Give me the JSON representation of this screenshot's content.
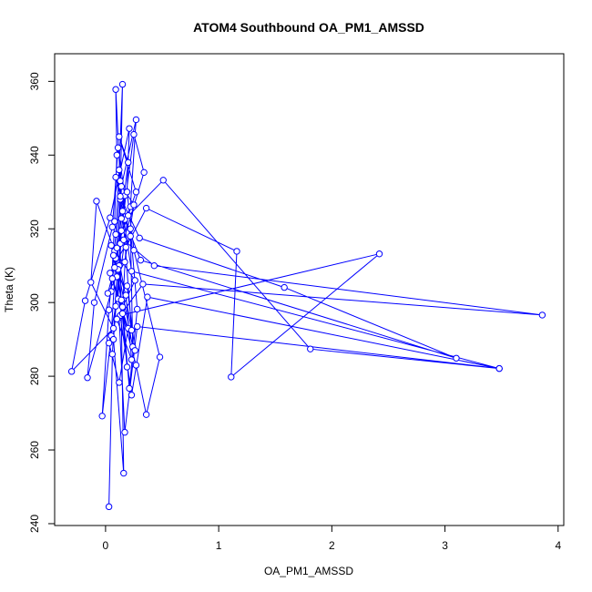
{
  "chart_data": {
    "type": "line",
    "title": "ATOM4 Southbound OA_PM1_AMSSD",
    "xlabel": "OA_PM1_AMSSD",
    "ylabel": "Theta (K)",
    "xlim": [
      -0.45,
      4.05
    ],
    "ylim": [
      239.5,
      367.5
    ],
    "xticks": [
      0,
      1,
      2,
      3,
      4
    ],
    "yticks": [
      240,
      260,
      280,
      300,
      320,
      340,
      360
    ],
    "grid": false,
    "marker": "open-circle",
    "color": "#0000ff",
    "series": [
      {
        "points": [
          [
            0.03,
            244.6
          ],
          [
            0.06,
            286.0
          ],
          [
            0.1,
            307.0
          ],
          [
            0.13,
            328.0
          ],
          [
            0.15,
            359.2
          ],
          [
            0.12,
            336.0
          ],
          [
            0.09,
            318.5
          ],
          [
            0.03,
            298.0
          ],
          [
            -0.03,
            269.2
          ],
          [
            0.05,
            291.0
          ],
          [
            0.09,
            312.0
          ],
          [
            0.13,
            333.0
          ],
          [
            0.09,
            357.8
          ],
          [
            0.1,
            340.0
          ],
          [
            0.08,
            322.0
          ],
          [
            0.05,
            303.0
          ],
          [
            -0.16,
            279.6
          ],
          [
            -0.1,
            300.0
          ],
          [
            0.06,
            320.5
          ],
          [
            0.11,
            342.0
          ],
          [
            0.17,
            329.0
          ],
          [
            0.13,
            316.0
          ],
          [
            0.16,
            253.7
          ],
          [
            0.07,
            290.0
          ],
          [
            0.12,
            310.0
          ],
          [
            0.14,
            331.5
          ],
          [
            0.27,
            349.6
          ],
          [
            0.22,
            326.0
          ],
          [
            0.08,
            314.0
          ],
          [
            -0.08,
            327.5
          ],
          [
            -0.13,
            305.5
          ],
          [
            0.07,
            293.0
          ],
          [
            -0.3,
            281.3
          ],
          [
            -0.18,
            300.5
          ],
          [
            0.04,
            323.0
          ],
          [
            0.21,
            347.2
          ],
          [
            0.19,
            330.0
          ],
          [
            0.25,
            314.2
          ],
          [
            0.48,
            285.2
          ],
          [
            0.36,
            269.6
          ],
          [
            0.27,
            283.0
          ],
          [
            0.11,
            301.0
          ],
          [
            0.14,
            319.5
          ],
          [
            0.25,
            345.6
          ],
          [
            0.34,
            335.3
          ],
          [
            0.16,
            317.0
          ],
          [
            0.43,
            310.0
          ],
          [
            3.86,
            296.6
          ],
          [
            0.33,
            305.0
          ],
          [
            0.12,
            296.0
          ],
          [
            0.17,
            264.8
          ],
          [
            0.28,
            293.5
          ],
          [
            3.48,
            282.1
          ],
          [
            0.23,
            308.5
          ],
          [
            0.13,
            328.8
          ],
          [
            0.3,
            317.5
          ],
          [
            1.58,
            304.1
          ],
          [
            3.1,
            284.9
          ],
          [
            0.31,
            311.5
          ],
          [
            0.17,
            322.5
          ],
          [
            0.51,
            333.2
          ],
          [
            1.81,
            287.4
          ],
          [
            3.48,
            282.1
          ],
          [
            0.37,
            301.5
          ],
          [
            0.23,
            274.9
          ],
          [
            0.13,
            296.5
          ],
          [
            2.42,
            313.2
          ],
          [
            1.11,
            279.8
          ],
          [
            1.16,
            313.9
          ],
          [
            0.36,
            325.6
          ],
          [
            0.18,
            315.0
          ],
          [
            0.15,
            298.8
          ],
          [
            0.21,
            276.7
          ],
          [
            0.28,
            298.2
          ],
          [
            0.22,
            320.0
          ],
          [
            0.24,
            288.0
          ],
          [
            0.11,
            309.0
          ],
          [
            0.19,
            282.5
          ],
          [
            0.14,
            300.7
          ],
          [
            0.05,
            315.5
          ],
          [
            0.26,
            306.0
          ],
          [
            0.1,
            295.5
          ],
          [
            0.23,
            284.5
          ],
          [
            0.18,
            302.0
          ],
          [
            0.07,
            312.8
          ],
          [
            0.2,
            323.6
          ],
          [
            0.09,
            299.0
          ],
          [
            0.03,
            289.0
          ],
          [
            0.12,
            278.3
          ],
          [
            0.2,
            293.0
          ],
          [
            0.06,
            306.5
          ],
          [
            0.15,
            324.8
          ],
          [
            0.23,
            292.5
          ],
          [
            0.1,
            314.8
          ],
          [
            0.27,
            330.0
          ],
          [
            0.12,
            345.0
          ],
          [
            0.2,
            338.0
          ],
          [
            0.14,
            322.8
          ],
          [
            0.08,
            309.5
          ],
          [
            0.02,
            302.5
          ],
          [
            0.17,
            311.0
          ],
          [
            0.25,
            326.5
          ],
          [
            0.09,
            334.0
          ],
          [
            0.22,
            318.0
          ],
          [
            0.04,
            308.0
          ],
          [
            0.15,
            297.0
          ],
          [
            0.26,
            287.0
          ],
          [
            0.19,
            304.5
          ]
        ]
      }
    ]
  }
}
